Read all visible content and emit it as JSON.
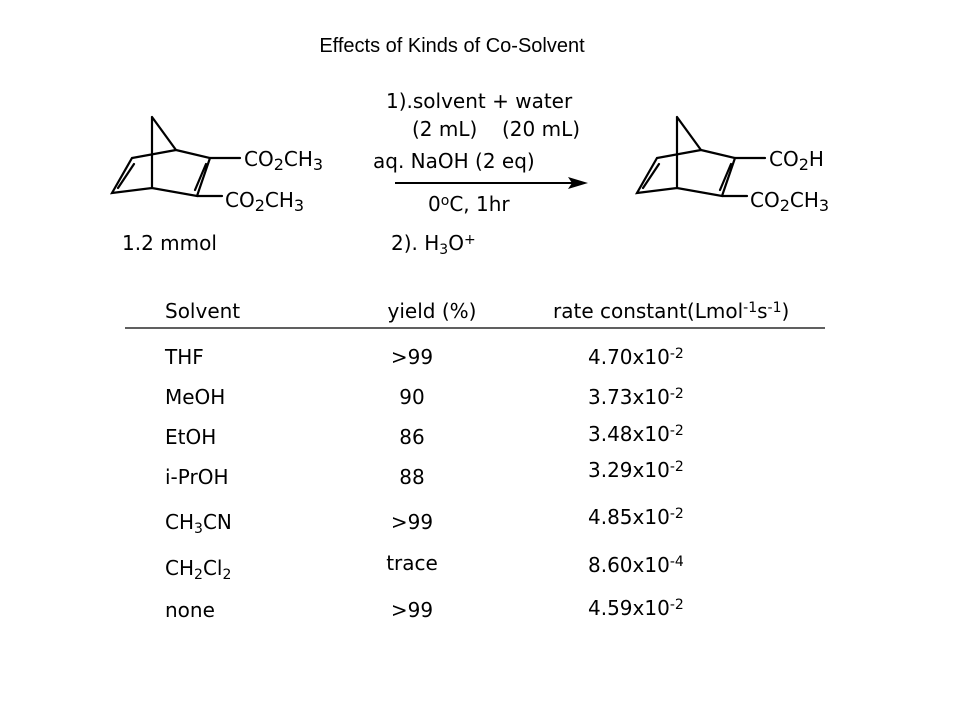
{
  "title": "Effects of Kinds of Co-Solvent",
  "reaction": {
    "reactant_groups": [
      [
        "CO",
        {
          "sub": "2"
        },
        "CH",
        {
          "sub": "3"
        }
      ],
      [
        "CO",
        {
          "sub": "2"
        },
        "CH",
        {
          "sub": "3"
        }
      ]
    ],
    "reactant_amount": [
      [
        "1.2 mmol"
      ]
    ],
    "conditions": [
      [
        "1).solvent + water"
      ],
      [
        "(2 mL)"
      ],
      [
        "(20 mL)"
      ],
      [
        "aq. NaOH (2 eq)"
      ],
      [
        "0",
        {
          "sup": "o"
        },
        "C, 1hr"
      ],
      [
        "2). H",
        {
          "sub": "3"
        },
        "O",
        {
          "sup": "+"
        }
      ]
    ],
    "product_groups": [
      [
        "CO",
        {
          "sub": "2"
        },
        "H"
      ],
      [
        "CO",
        {
          "sub": "2"
        },
        "CH",
        {
          "sub": "3"
        }
      ]
    ]
  },
  "table": {
    "header": [
      [
        "Solvent"
      ],
      [
        "yield (%)"
      ],
      [
        "rate constant(Lmol",
        {
          "sup": "-1"
        },
        "s",
        {
          "sup": "-1"
        },
        ")"
      ]
    ],
    "rows": [
      [
        [
          "THF"
        ],
        [
          ">99"
        ],
        [
          "4.70x10",
          {
            "sup": "-2"
          }
        ]
      ],
      [
        [
          "MeOH"
        ],
        [
          "90"
        ],
        [
          "3.73x10",
          {
            "sup": "-2"
          }
        ]
      ],
      [
        [
          "EtOH"
        ],
        [
          "86"
        ],
        [
          "3.48x10",
          {
            "sup": "-2"
          }
        ]
      ],
      [
        [
          "i-PrOH"
        ],
        [
          "88"
        ],
        [
          "3.29x10",
          {
            "sup": "-2"
          }
        ]
      ],
      [
        [
          "CH",
          {
            "sub": "3"
          },
          "CN"
        ],
        [
          ">99"
        ],
        [
          "4.85x10",
          {
            "sup": "-2"
          }
        ]
      ],
      [
        [
          "CH",
          {
            "sub": "2"
          },
          "Cl",
          {
            "sub": "2"
          }
        ],
        [
          "trace"
        ],
        [
          "8.60x10",
          {
            "sup": "-4"
          }
        ]
      ],
      [
        [
          "none"
        ],
        [
          ">99"
        ],
        [
          "4.59x10",
          {
            "sup": "-2"
          }
        ]
      ]
    ]
  }
}
